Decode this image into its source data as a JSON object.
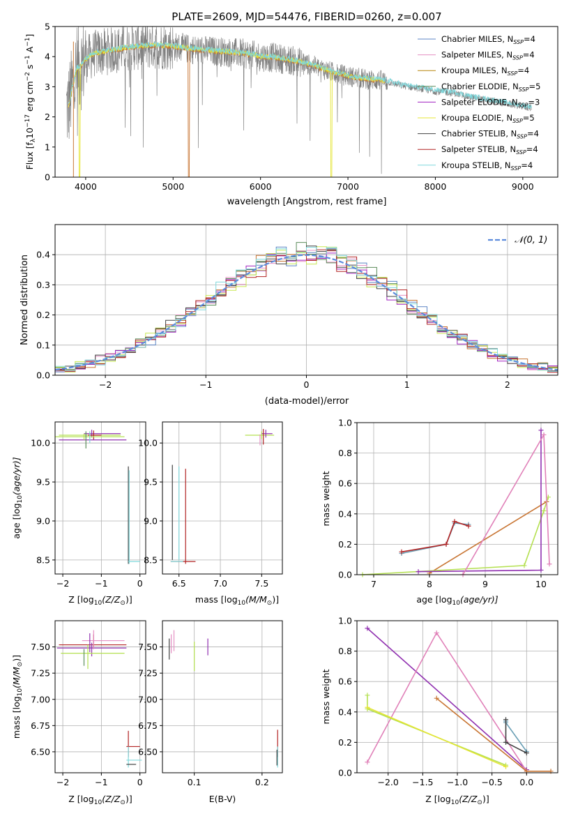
{
  "figure": {
    "title": "PLATE=2609, MJD=54476, FIBERID=0260, z=0.007"
  },
  "model_colors": {
    "Chabrier MILES": "#5b84c4",
    "Salpeter MILES": "#e58fc3",
    "Kroupa MILES": "#b8860b",
    "Chabrier ELODIE": "#5b8c5a",
    "Salpeter ELODIE": "#a020c0",
    "Kroupa ELODIE": "#e5e535",
    "Chabrier STELIB": "#404040",
    "Salpeter STELIB": "#b22222",
    "Kroupa STELIB": "#7fd8dc",
    "data_spectrum": "#808080",
    "normal_curve": "#5b8bdc",
    "orange_line": "#c87533",
    "lime_line": "#b4e050",
    "purple_line": "#9030b0",
    "pink_line": "#e080b8",
    "steel_line": "#6a9fb5"
  },
  "chart_data": [
    {
      "id": "spectrum",
      "type": "line",
      "title": "PLATE=2609, MJD=54476, FIBERID=0260, z=0.007",
      "xlabel": "wavelength [Angstrom, rest frame]",
      "ylabel_main": "Flux [f",
      "ylabel_sub": "λ",
      "ylabel_rest": "10",
      "ylabel_sup": "−17",
      "ylabel_tail": " erg cm",
      "ylabel_sup2": "−2",
      "ylabel_tail2": " s",
      "ylabel_sup3": "−1",
      "ylabel_tail3": " A",
      "ylabel_sup4": "−1",
      "ylabel_end": "]",
      "xlim": [
        3650,
        9400
      ],
      "ylim": [
        0,
        5
      ],
      "xticks": [
        "4000",
        "5000",
        "6000",
        "7000",
        "8000",
        "9000"
      ],
      "xtick_values": [
        4000,
        5000,
        6000,
        7000,
        8000,
        9000
      ],
      "yticks": [
        "0",
        "1",
        "2",
        "3",
        "4",
        "5"
      ],
      "ytick_values": [
        0,
        1,
        2,
        3,
        4,
        5
      ],
      "grid": false,
      "legend_position": "right",
      "legend": [
        {
          "name": "Chabrier MILES",
          "nssp": "=4",
          "color": "#5b84c4"
        },
        {
          "name": "Salpeter MILES",
          "nssp": "=4",
          "color": "#e58fc3"
        },
        {
          "name": "Kroupa MILES",
          "nssp": "=4",
          "color": "#b8860b"
        },
        {
          "name": "Chabrier ELODIE",
          "nssp": "=5",
          "color": "#5b8c5a"
        },
        {
          "name": "Salpeter ELODIE",
          "nssp": "=3",
          "color": "#a020c0"
        },
        {
          "name": "Kroupa ELODIE",
          "nssp": "=5",
          "color": "#e5e535"
        },
        {
          "name": "Chabrier STELIB",
          "nssp": "=4",
          "color": "#404040"
        },
        {
          "name": "Salpeter STELIB",
          "nssp": "=4",
          "color": "#b22222"
        },
        {
          "name": "Kroupa STELIB",
          "nssp": "=4",
          "color": "#7fd8dc"
        }
      ],
      "nssp_prefix": "N",
      "nssp_sub": "SSP",
      "model_curve": {
        "x": [
          3800,
          3850,
          3900,
          3950,
          4000,
          4050,
          4100,
          4200,
          4300,
          4400,
          4500,
          4600,
          4700,
          4800,
          4900,
          5000,
          5200,
          5400,
          5600,
          5800,
          6000,
          6200,
          6400,
          6600,
          6800,
          7000,
          7200,
          7400,
          7600,
          7800,
          8000,
          8200,
          8400,
          8600,
          8800,
          9000,
          9100
        ],
        "y": [
          2.3,
          3.0,
          3.6,
          3.7,
          3.9,
          4.0,
          4.1,
          4.15,
          4.2,
          4.25,
          4.3,
          4.33,
          4.35,
          4.36,
          4.35,
          4.33,
          4.25,
          4.2,
          4.15,
          4.1,
          4.0,
          3.95,
          3.85,
          3.7,
          3.5,
          3.35,
          3.25,
          3.2,
          3.05,
          2.95,
          2.85,
          2.8,
          2.65,
          2.55,
          2.45,
          2.35,
          2.3
        ]
      },
      "noisy_data_range": [
        3780,
        7450
      ],
      "model_line_end": 9100
    },
    {
      "id": "residuals",
      "type": "area",
      "xlabel": "(data-model)/error",
      "ylabel": "Normed distribution",
      "xlim": [
        -2.5,
        2.5
      ],
      "ylim": [
        0,
        0.5
      ],
      "xticks": [
        "−2",
        "−1",
        "0",
        "1",
        "2"
      ],
      "xtick_values": [
        -2,
        -1,
        0,
        1,
        2
      ],
      "yticks": [
        "0.0",
        "0.1",
        "0.2",
        "0.3",
        "0.4"
      ],
      "ytick_values": [
        0,
        0.1,
        0.2,
        0.3,
        0.4
      ],
      "grid": true,
      "legend_position": "top-right",
      "legend": [
        {
          "name": "𝒩(0, 1)",
          "color": "#5b8bdc"
        }
      ],
      "bins_start": -2.5,
      "bin_width": 0.1
    },
    {
      "id": "age_vs_Z",
      "type": "scatter",
      "xlabel": "Z [log",
      "xlabel_sub": "10",
      "xlabel_rest": "(Z/Z",
      "xlabel_sub2": "⊙",
      "xlabel_end": ")]",
      "ylabel": "age  [log",
      "ylabel_sub": "10",
      "ylabel_rest": "(age/yr)]",
      "xlim": [
        -2.2,
        0.15
      ],
      "ylim": [
        8.32,
        10.27
      ],
      "xticks": [
        "−2",
        "−1",
        "0"
      ],
      "xtick_values": [
        -2,
        -1,
        0
      ],
      "yticks": [
        "8.5",
        "9.0",
        "9.5",
        "10.0"
      ],
      "ytick_values": [
        8.5,
        9.0,
        9.5,
        10.0
      ],
      "grid": true
    },
    {
      "id": "age_vs_mass",
      "type": "scatter",
      "xlabel": "mass [log",
      "xlabel_sub": "10",
      "xlabel_rest": "(M/M",
      "xlabel_sub2": "⊙",
      "xlabel_end": ")]",
      "xlim": [
        6.3,
        7.75
      ],
      "ylim": [
        8.32,
        10.27
      ],
      "xticks": [
        "6.5",
        "7.0",
        "7.5"
      ],
      "xtick_values": [
        6.5,
        7.0,
        7.5
      ],
      "yticks": [
        "8.5",
        "9.0",
        "9.5",
        "10.0"
      ],
      "ytick_values": [
        8.5,
        9.0,
        9.5,
        10.0
      ],
      "grid": true
    },
    {
      "id": "massweight_vs_age",
      "type": "line",
      "xlabel": "age  [log",
      "xlabel_sub": "10",
      "xlabel_rest": "(age/yr)]",
      "ylabel": "mass weight",
      "xlim": [
        6.7,
        10.3
      ],
      "ylim": [
        0,
        1.0
      ],
      "xticks": [
        "7",
        "8",
        "9",
        "10"
      ],
      "xtick_values": [
        7,
        8,
        9,
        10
      ],
      "yticks": [
        "0.0",
        "0.2",
        "0.4",
        "0.6",
        "0.8",
        "1.0"
      ],
      "ytick_values": [
        0,
        0.2,
        0.4,
        0.6,
        0.8,
        1.0
      ],
      "grid": true,
      "series": [
        {
          "color": "#c87533",
          "x": [
            8.0,
            10.1
          ],
          "y": [
            0.01,
            0.48
          ]
        },
        {
          "color": "#b4e050",
          "x": [
            6.8,
            9.7,
            10.05,
            10.13
          ],
          "y": [
            0.0,
            0.06,
            0.42,
            0.51
          ]
        },
        {
          "color": "#9030b0",
          "x": [
            7.8,
            10.0,
            10.0
          ],
          "y": [
            0.02,
            0.03,
            0.95
          ]
        },
        {
          "color": "#e080b8",
          "x": [
            8.6,
            10.05,
            10.15
          ],
          "y": [
            0.0,
            0.92,
            0.07
          ]
        },
        {
          "color": "#6a9fb5",
          "x": [
            7.5,
            8.3,
            8.45,
            8.7
          ],
          "y": [
            0.14,
            0.2,
            0.34,
            0.33
          ]
        },
        {
          "color": "#b22222",
          "x": [
            7.5,
            8.3,
            8.45,
            8.7
          ],
          "y": [
            0.15,
            0.2,
            0.35,
            0.32
          ]
        }
      ]
    },
    {
      "id": "mass_vs_Z",
      "type": "scatter",
      "xlabel": "Z [log",
      "xlabel_sub": "10",
      "xlabel_rest": "(Z/Z",
      "xlabel_sub2": "⊙",
      "xlabel_end": ")]",
      "ylabel": "mass [log",
      "ylabel_sub": "10",
      "ylabel_rest": "(M/M",
      "ylabel_sub2": "⊙",
      "ylabel_end": ")]",
      "xlim": [
        -2.2,
        0.15
      ],
      "ylim": [
        6.3,
        7.75
      ],
      "xticks": [
        "−2",
        "−1",
        "0"
      ],
      "xtick_values": [
        -2,
        -1,
        0
      ],
      "yticks": [
        "6.50",
        "6.75",
        "7.00",
        "7.25",
        "7.50"
      ],
      "ytick_values": [
        6.5,
        6.75,
        7.0,
        7.25,
        7.5
      ],
      "grid": true
    },
    {
      "id": "mass_vs_EBV",
      "type": "scatter",
      "xlabel": "E(B-V)",
      "xlim": [
        0.053,
        0.23
      ],
      "ylim": [
        6.3,
        7.75
      ],
      "xticks": [
        "0.1",
        "0.2"
      ],
      "xtick_values": [
        0.1,
        0.2
      ],
      "yticks": [
        "6.50",
        "6.75",
        "7.00",
        "7.25",
        "7.50"
      ],
      "ytick_values": [
        6.5,
        6.75,
        7.0,
        7.25,
        7.5
      ],
      "grid": true
    },
    {
      "id": "massweight_vs_Z",
      "type": "line",
      "xlabel": "Z [log",
      "xlabel_sub": "10",
      "xlabel_rest": "(Z/Z",
      "xlabel_sub2": "⊙",
      "xlabel_end": ")]",
      "ylabel": "mass weight",
      "xlim": [
        -2.45,
        0.45
      ],
      "ylim": [
        0,
        1.0
      ],
      "xticks": [
        "−2.0",
        "−1.5",
        "−1.0",
        "−0.5",
        "0.0"
      ],
      "xtick_values": [
        -2.0,
        -1.5,
        -1.0,
        -0.5,
        0.0
      ],
      "yticks": [
        "0.0",
        "0.2",
        "0.4",
        "0.6",
        "0.8",
        "1.0"
      ],
      "ytick_values": [
        0,
        0.2,
        0.4,
        0.6,
        0.8,
        1.0
      ],
      "grid": true,
      "series": [
        {
          "color": "#9030b0",
          "x": [
            -2.3,
            0.0
          ],
          "y": [
            0.95,
            0.02
          ]
        },
        {
          "color": "#e080b8",
          "x": [
            -2.3,
            -1.3,
            0.0
          ],
          "y": [
            0.07,
            0.92,
            0.01
          ]
        },
        {
          "color": "#c87533",
          "x": [
            -1.3,
            0.0,
            0.35
          ],
          "y": [
            0.49,
            0.01,
            0.01
          ]
        },
        {
          "color": "#b4e050",
          "x": [
            -2.3,
            -2.3,
            -0.3
          ],
          "y": [
            0.51,
            0.42,
            0.05
          ]
        },
        {
          "color": "#e5e535",
          "x": [
            -2.3,
            -0.3
          ],
          "y": [
            0.43,
            0.04
          ]
        },
        {
          "color": "#6a9fb5",
          "x": [
            -0.3,
            -0.3,
            0.0
          ],
          "y": [
            0.34,
            0.33,
            0.14
          ]
        },
        {
          "color": "#404040",
          "x": [
            -0.3,
            -0.3,
            0.0
          ],
          "y": [
            0.35,
            0.2,
            0.13
          ]
        }
      ]
    }
  ]
}
